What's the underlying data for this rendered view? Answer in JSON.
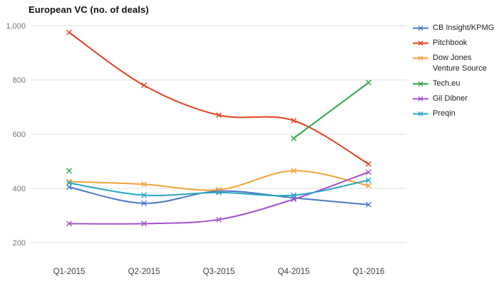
{
  "title": "European VC (no. of deals)",
  "chart_data": {
    "type": "line",
    "title": "European VC (no. of deals)",
    "curve": "smooth",
    "marker": "x",
    "grid": true,
    "legend_position": "right",
    "categories": [
      "Q1-2015",
      "Q2-2015",
      "Q3-2015",
      "Q4-2015",
      "Q1-2016"
    ],
    "series": [
      {
        "name": "CB Insight/KPMG",
        "color": "#4d79c7",
        "values": [
          405,
          345,
          390,
          365,
          340
        ]
      },
      {
        "name": "Pitchbook",
        "color": "#e2431e",
        "values": [
          975,
          780,
          670,
          650,
          490
        ]
      },
      {
        "name": "Dow Jones Venture Source",
        "color": "#f2a33a",
        "values": [
          425,
          415,
          395,
          465,
          410
        ]
      },
      {
        "name": "Tech.eu",
        "color": "#2ca444",
        "values": [
          465,
          null,
          null,
          585,
          790
        ]
      },
      {
        "name": "Gil Dibner",
        "color": "#a352cc",
        "values": [
          270,
          270,
          285,
          360,
          460
        ]
      },
      {
        "name": "Preqin",
        "color": "#2aa6c0",
        "values": [
          420,
          375,
          385,
          375,
          430
        ]
      }
    ],
    "ylim": [
      200,
      1000
    ],
    "y_ticks": [
      1000,
      800,
      600,
      400,
      200
    ],
    "y_tick_labels": [
      "1,000",
      "800",
      "600",
      "400",
      "200"
    ],
    "xlabel": "",
    "ylabel": ""
  },
  "colors": {
    "background": "#ffffff",
    "gridline": "#e2e2e2",
    "y_tick_text": "#757575",
    "x_tick_text": "#404040",
    "title_text": "#111111",
    "legend_text": "#222222"
  }
}
